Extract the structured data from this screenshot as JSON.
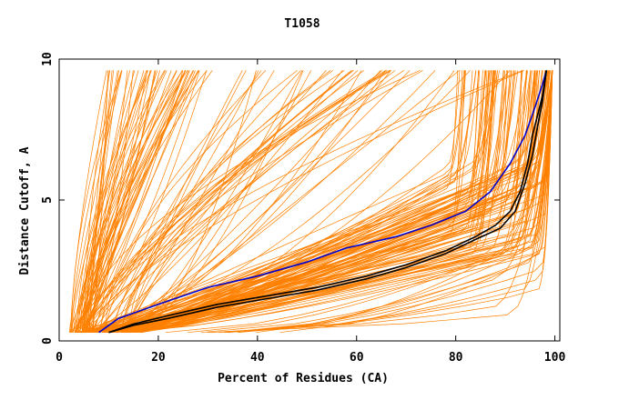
{
  "chart_data": {
    "type": "line",
    "title": "T1058",
    "xlabel": "Percent of Residues (CA)",
    "ylabel": "Distance Cutoff, A",
    "xlim": [
      0,
      101
    ],
    "ylim": [
      0,
      10
    ],
    "xticks": [
      0,
      20,
      40,
      60,
      80,
      100
    ],
    "yticks": [
      0,
      5,
      10
    ],
    "grid": false,
    "legend": "none",
    "colors": {
      "bulk": "#ff8000",
      "highlight_blue": "#0000cc",
      "highlight_black": "#000000"
    },
    "highlight_series": [
      {
        "color": "#0000cc",
        "x": [
          8,
          12,
          20,
          30,
          40,
          50,
          58,
          68,
          75,
          82,
          87,
          91,
          94,
          96,
          97.5,
          98.3
        ],
        "y": [
          0.3,
          0.8,
          1.3,
          1.9,
          2.3,
          2.8,
          3.3,
          3.7,
          4.1,
          4.6,
          5.3,
          6.3,
          7.3,
          8.3,
          9.1,
          9.6
        ]
      },
      {
        "color": "#000000",
        "x": [
          10,
          15,
          22,
          32,
          42,
          52,
          62,
          70,
          78,
          84,
          88,
          91,
          93,
          94.5,
          95.5,
          96.5,
          97.5,
          98.3
        ],
        "y": [
          0.3,
          0.6,
          0.9,
          1.3,
          1.6,
          1.9,
          2.3,
          2.7,
          3.2,
          3.7,
          4.1,
          4.6,
          5.3,
          6.3,
          7.3,
          8.0,
          8.7,
          9.6
        ]
      },
      {
        "color": "#000000",
        "x": [
          10,
          15,
          22,
          32,
          42,
          52,
          62,
          70,
          78,
          84,
          89,
          92,
          94,
          95.5,
          96.5,
          97.5,
          98.3
        ],
        "y": [
          0.3,
          0.55,
          0.8,
          1.2,
          1.5,
          1.8,
          2.2,
          2.6,
          3.1,
          3.6,
          4.0,
          4.6,
          5.6,
          6.6,
          7.6,
          8.5,
          9.6
        ]
      }
    ]
  }
}
